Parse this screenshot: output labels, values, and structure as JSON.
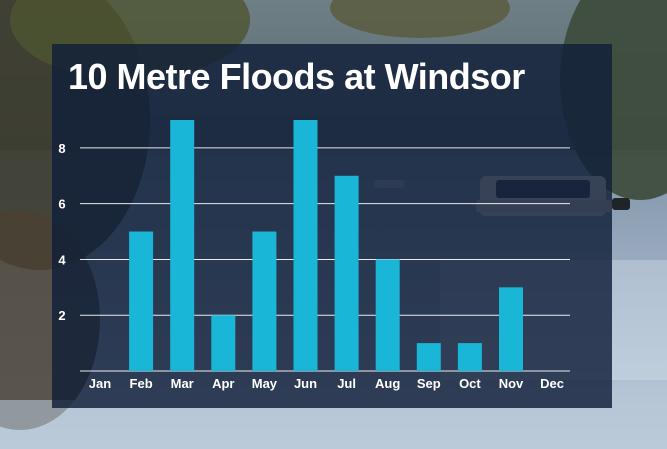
{
  "colors": {
    "bar": "#1ab6d8",
    "panel": "#101e38",
    "text": "#ffffff"
  },
  "chart_data": {
    "type": "bar",
    "title": "10 Metre Floods at Windsor",
    "xlabel": "",
    "ylabel": "",
    "categories": [
      "Jan",
      "Feb",
      "Mar",
      "Apr",
      "May",
      "Jun",
      "Jul",
      "Aug",
      "Sep",
      "Oct",
      "Nov",
      "Dec"
    ],
    "values": [
      0,
      5,
      9,
      2,
      5,
      9,
      7,
      4,
      1,
      1,
      3,
      0
    ],
    "ylim": [
      0,
      9
    ],
    "yticks": [
      2,
      4,
      6,
      8
    ],
    "grid": true,
    "legend": "none"
  }
}
